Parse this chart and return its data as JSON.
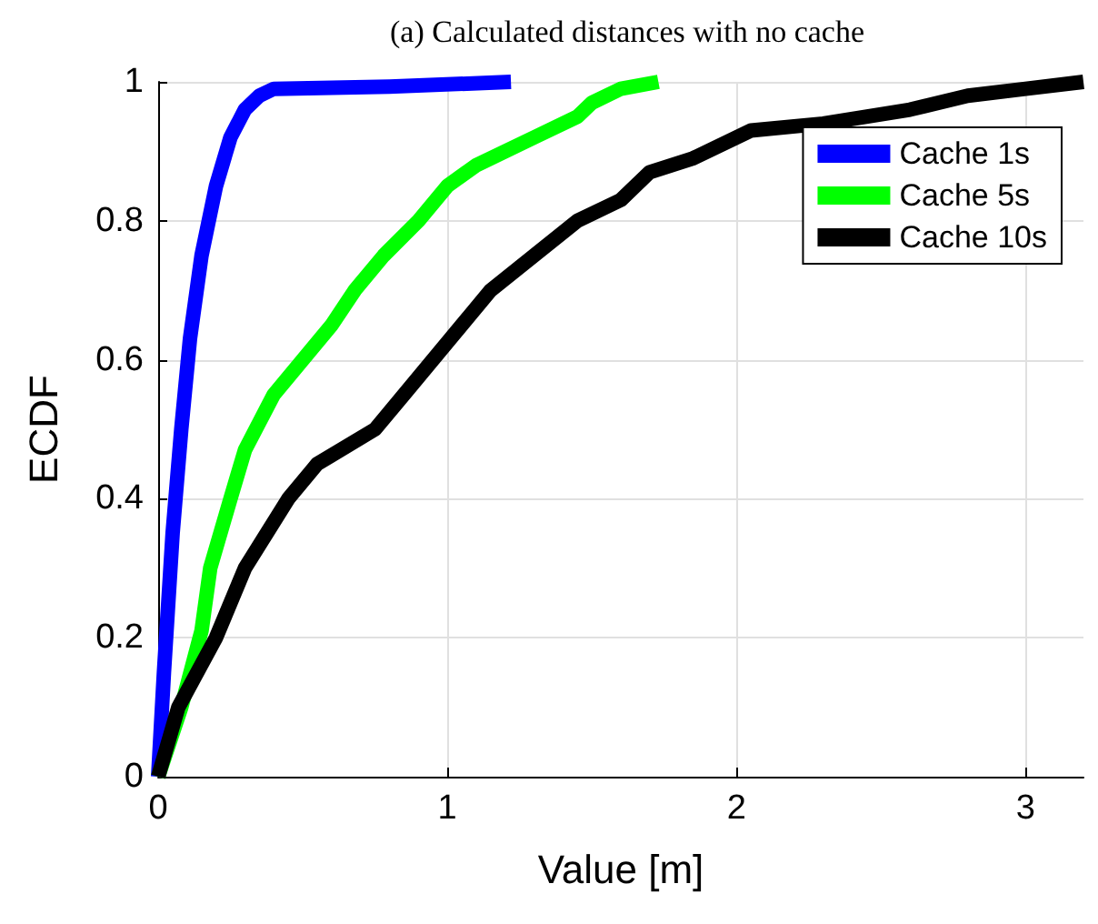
{
  "chart_data": {
    "type": "line",
    "title": "(a) Calculated distances with no cache",
    "xlabel": "Value [m]",
    "ylabel": "ECDF",
    "xlim": [
      0,
      3.2
    ],
    "xticks": [
      0,
      1,
      2,
      3
    ],
    "ylim": [
      0,
      1
    ],
    "yticks": [
      0,
      0.2,
      0.4,
      0.6,
      0.8,
      1
    ],
    "grid": true,
    "legend": "top right",
    "marker": "none",
    "line_style": "solid",
    "series": [
      {
        "name": "Cache 1s",
        "color": "#0000ff",
        "x": [
          0,
          0.02,
          0.05,
          0.08,
          0.11,
          0.15,
          0.2,
          0.25,
          0.3,
          0.35,
          0.4,
          0.8,
          1.22
        ],
        "values": [
          0,
          0.15,
          0.35,
          0.5,
          0.63,
          0.75,
          0.85,
          0.92,
          0.96,
          0.98,
          0.99,
          0.993,
          1
        ]
      },
      {
        "name": "Cache 5s",
        "color": "#00ff00",
        "x": [
          0,
          0.08,
          0.15,
          0.18,
          0.25,
          0.3,
          0.4,
          0.5,
          0.6,
          0.68,
          0.78,
          0.9,
          1.0,
          1.1,
          1.3,
          1.45,
          1.5,
          1.6,
          1.73
        ],
        "values": [
          0,
          0.1,
          0.21,
          0.3,
          0.4,
          0.47,
          0.55,
          0.6,
          0.65,
          0.7,
          0.75,
          0.8,
          0.85,
          0.88,
          0.92,
          0.95,
          0.97,
          0.99,
          1
        ]
      },
      {
        "name": "Cache 10s",
        "color": "#000000",
        "x": [
          0,
          0.07,
          0.2,
          0.3,
          0.45,
          0.55,
          0.75,
          0.85,
          0.95,
          1.05,
          1.15,
          1.3,
          1.45,
          1.6,
          1.7,
          1.85,
          2.05,
          2.3,
          2.6,
          2.8,
          3.0,
          3.2
        ],
        "values": [
          0,
          0.1,
          0.2,
          0.3,
          0.4,
          0.45,
          0.5,
          0.55,
          0.6,
          0.65,
          0.7,
          0.75,
          0.8,
          0.83,
          0.87,
          0.89,
          0.93,
          0.94,
          0.96,
          0.98,
          0.99,
          1
        ]
      }
    ]
  }
}
